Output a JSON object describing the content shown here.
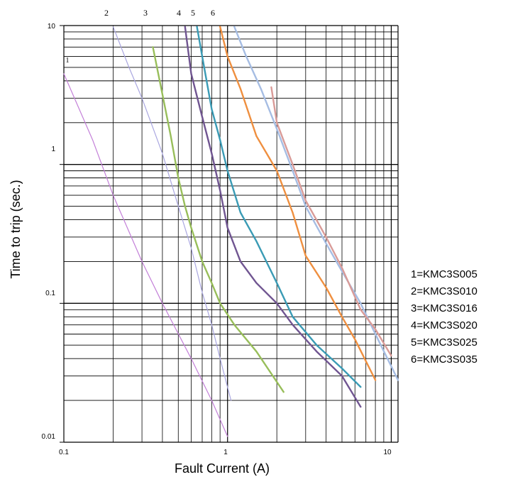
{
  "chart_data": {
    "type": "line",
    "title": "",
    "xlabel": "Fault Current (A)",
    "ylabel": "Time to trip (sec.)",
    "x_scale": "log",
    "y_scale": "log",
    "xlim": [
      0.1,
      11
    ],
    "ylim": [
      0.01,
      10
    ],
    "grid": true,
    "x_tick_labels": [
      "0.1",
      "1",
      "10"
    ],
    "y_tick_labels": [
      "0.01",
      "0.1",
      "1",
      "10"
    ],
    "curve_numbers": [
      "1",
      "2",
      "3",
      "4",
      "5",
      "6"
    ],
    "legend": [
      "1=KMC3S005",
      "2=KMC3S010",
      "3=KMC3S016",
      "4=KMC3S020",
      "5=KMC3S025",
      "6=KMC3S035"
    ],
    "legend_position": "right",
    "series": [
      {
        "number": "1",
        "color": "#c37fd8",
        "points": [
          [
            0.1,
            4.5
          ],
          [
            0.15,
            1.5
          ],
          [
            0.2,
            0.6
          ],
          [
            0.3,
            0.2
          ],
          [
            0.4,
            0.1
          ],
          [
            0.6,
            0.04
          ],
          [
            0.8,
            0.02
          ],
          [
            1.0,
            0.011
          ]
        ]
      },
      {
        "number": "2",
        "color": "#a9a6e0",
        "points": [
          [
            0.2,
            9.8
          ],
          [
            0.25,
            5.0
          ],
          [
            0.3,
            3.0
          ],
          [
            0.4,
            1.2
          ],
          [
            0.5,
            0.5
          ],
          [
            0.6,
            0.25
          ],
          [
            0.7,
            0.12
          ],
          [
            0.8,
            0.07
          ],
          [
            0.9,
            0.04
          ],
          [
            1.05,
            0.02
          ]
        ]
      },
      {
        "number": "3",
        "color": "#98be5a",
        "points": [
          [
            0.35,
            7.0
          ],
          [
            0.4,
            3.2
          ],
          [
            0.45,
            1.6
          ],
          [
            0.5,
            0.8
          ],
          [
            0.55,
            0.5
          ],
          [
            0.6,
            0.35
          ],
          [
            0.7,
            0.2
          ],
          [
            0.8,
            0.14
          ],
          [
            0.9,
            0.1
          ],
          [
            1.1,
            0.07
          ],
          [
            1.5,
            0.045
          ],
          [
            2.2,
            0.023
          ]
        ]
      },
      {
        "number": "4",
        "color": "#705591",
        "points": [
          [
            0.55,
            9.8
          ],
          [
            0.6,
            4.5
          ],
          [
            0.7,
            2.2
          ],
          [
            0.8,
            1.2
          ],
          [
            0.9,
            0.65
          ],
          [
            1.0,
            0.35
          ],
          [
            1.2,
            0.2
          ],
          [
            1.5,
            0.14
          ],
          [
            2.0,
            0.1
          ],
          [
            2.5,
            0.07
          ],
          [
            3.5,
            0.045
          ],
          [
            5.0,
            0.03
          ],
          [
            6.5,
            0.018
          ]
        ]
      },
      {
        "number": "5",
        "color": "#3a9bb5",
        "points": [
          [
            0.65,
            9.8
          ],
          [
            0.7,
            6.0
          ],
          [
            0.8,
            2.5
          ],
          [
            0.9,
            1.5
          ],
          [
            1.0,
            0.9
          ],
          [
            1.2,
            0.45
          ],
          [
            1.5,
            0.28
          ],
          [
            2.0,
            0.14
          ],
          [
            2.5,
            0.08
          ],
          [
            3.5,
            0.05
          ],
          [
            5.0,
            0.034
          ],
          [
            6.5,
            0.025
          ]
        ]
      },
      {
        "number": "6",
        "color": "#ef8f3f",
        "points": [
          [
            0.9,
            9.8
          ],
          [
            1.0,
            6.0
          ],
          [
            1.2,
            3.5
          ],
          [
            1.5,
            1.6
          ],
          [
            2.0,
            0.9
          ],
          [
            2.5,
            0.45
          ],
          [
            3.0,
            0.22
          ],
          [
            4.0,
            0.13
          ],
          [
            5.0,
            0.08
          ],
          [
            6.0,
            0.055
          ],
          [
            8.0,
            0.028
          ]
        ]
      },
      {
        "number": "",
        "color": "#a6bde3",
        "points": [
          [
            1.1,
            9.8
          ],
          [
            1.3,
            6.0
          ],
          [
            1.6,
            3.5
          ],
          [
            2.0,
            1.8
          ],
          [
            2.5,
            0.9
          ],
          [
            3.0,
            0.5
          ],
          [
            4.0,
            0.27
          ],
          [
            5.0,
            0.17
          ],
          [
            6.5,
            0.1
          ],
          [
            8.0,
            0.06
          ],
          [
            11.0,
            0.028
          ]
        ]
      },
      {
        "number": "",
        "color": "#d99b98",
        "points": [
          [
            1.85,
            3.6
          ],
          [
            2.0,
            2.0
          ],
          [
            2.5,
            1.0
          ],
          [
            3.0,
            0.55
          ],
          [
            4.0,
            0.3
          ],
          [
            5.0,
            0.18
          ],
          [
            6.5,
            0.09
          ],
          [
            8.0,
            0.065
          ],
          [
            10.0,
            0.042
          ]
        ]
      }
    ]
  }
}
